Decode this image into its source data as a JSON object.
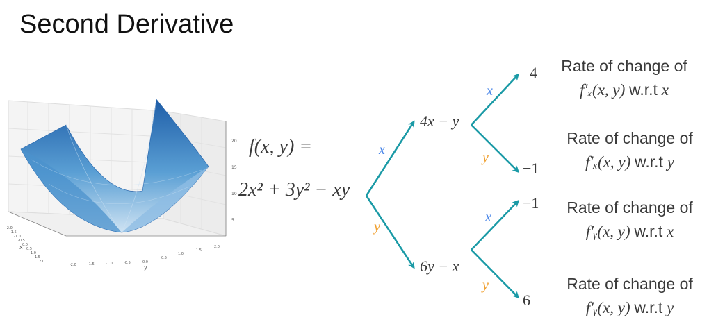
{
  "title": "Second Derivative",
  "function": {
    "line1": "f(x, y) =",
    "line2": "2x² + 3y² − xy"
  },
  "first_order": {
    "fx": "4x − y",
    "fy": "6y − x"
  },
  "branch_labels": {
    "x": "x",
    "y": "y"
  },
  "second_order": [
    {
      "value": "4",
      "desc": "Rate of change of",
      "func": "f′ₓ(x, y)",
      "wrt_text": "w.r.t",
      "wrt_var": "x"
    },
    {
      "value": "−1",
      "desc": "Rate of change of",
      "func": "f′ₓ(x, y)",
      "wrt_text": "w.r.t",
      "wrt_var": "y"
    },
    {
      "value": "−1",
      "desc": "Rate of change of",
      "func": "f′ᵧ(x, y)",
      "wrt_text": "w.r.t",
      "wrt_var": "x"
    },
    {
      "value": "6",
      "desc": "Rate of change of",
      "func": "f′ᵧ(x, y)",
      "wrt_text": "w.r.t",
      "wrt_var": "y"
    }
  ],
  "surface_plot": {
    "x_axis_label": "x",
    "y_axis_label": "y",
    "x_ticks": [
      "-2.0",
      "-1.5",
      "-1.0",
      "-0.5",
      "0.0",
      "0.5",
      "1.0",
      "1.5",
      "2.0"
    ],
    "y_ticks": [
      "-2.0",
      "-1.5",
      "-1.0",
      "-0.5",
      "0.0",
      "0.5",
      "1.0",
      "1.5",
      "2.0"
    ],
    "z_ticks": [
      "5",
      "10",
      "15",
      "20"
    ]
  },
  "colors": {
    "arrow": "#1a9aa6",
    "label_x": "#4a86e8",
    "label_y": "#f0a030",
    "surface_dark": "#1f5ea8",
    "surface_light": "#bcd7ee"
  }
}
